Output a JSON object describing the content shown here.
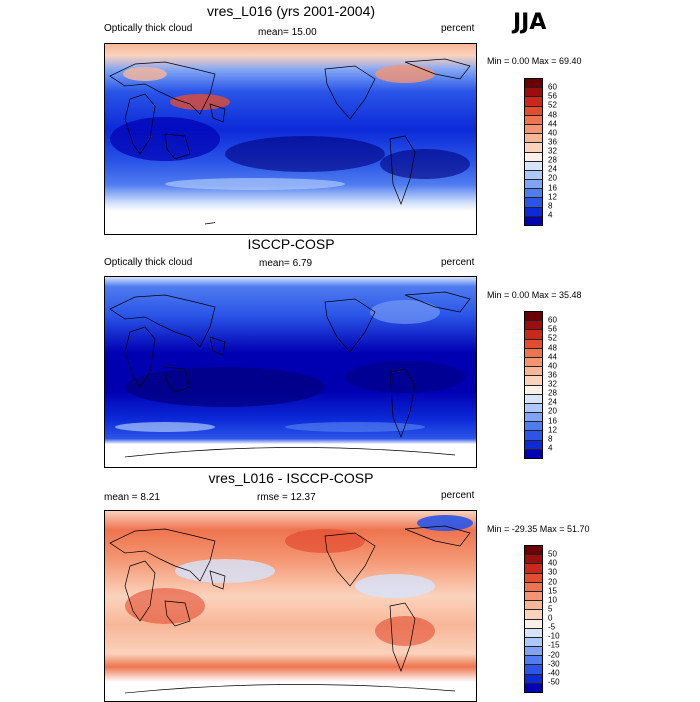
{
  "season": "JJA",
  "colors": {
    "abs_scale": [
      "#00007e",
      "#0000b3",
      "#0c2ad8",
      "#2a55e8",
      "#4f7cf0",
      "#7ea3f7",
      "#adc8fb",
      "#d6e4fc",
      "#fdf0e8",
      "#fbd3bd",
      "#f8b697",
      "#f49571",
      "#ee744f",
      "#e24d30",
      "#c9281a",
      "#9c0d0d",
      "#6a0000"
    ],
    "diff_scale": [
      "#00007e",
      "#0000b3",
      "#0c2ad8",
      "#2a55e8",
      "#4f7cf0",
      "#7ea3f7",
      "#adc8fb",
      "#d6e4fc",
      "#fdf0e8",
      "#fbd3bd",
      "#f8b697",
      "#f49571",
      "#ee744f",
      "#e24d30",
      "#c9281a",
      "#9c0d0d",
      "#6a0000"
    ]
  },
  "panels": [
    {
      "title": "vres_L016 (yrs 2001-2004)",
      "left_label": "Optically thick cloud",
      "center_label": "mean=  15.00",
      "right_label": "percent",
      "stats": "Min =   0.00 Max =  69.40",
      "ticks": [
        "60",
        "56",
        "52",
        "48",
        "44",
        "40",
        "36",
        "32",
        "28",
        "24",
        "20",
        "16",
        "12",
        "8",
        "4"
      ]
    },
    {
      "title": "ISCCP-COSP",
      "left_label": "Optically thick cloud",
      "center_label": "mean=   6.79",
      "right_label": "percent",
      "stats": "Min =   0.00 Max =  35.48",
      "ticks": [
        "60",
        "56",
        "52",
        "48",
        "44",
        "40",
        "36",
        "32",
        "28",
        "24",
        "20",
        "16",
        "12",
        "8",
        "4"
      ]
    },
    {
      "title": "vres_L016 - ISCCP-COSP",
      "left_label": "mean =   8.21",
      "center_label": "rmse =  12.37",
      "right_label": "percent",
      "stats": "Min = -29.35 Max =  51.70",
      "ticks": [
        "50",
        "40",
        "30",
        "20",
        "15",
        "10",
        "5",
        "0",
        "-5",
        "-10",
        "-15",
        "-20",
        "-30",
        "-40",
        "-50"
      ]
    }
  ]
}
